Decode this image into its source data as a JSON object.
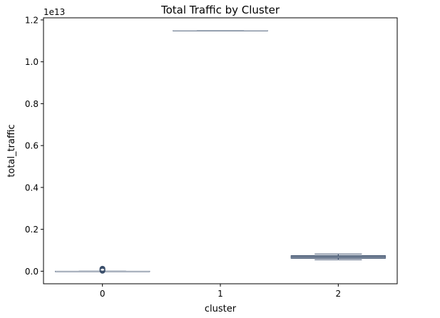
{
  "chart_data": {
    "type": "box",
    "title": "Total Traffic by Cluster",
    "xlabel": "cluster",
    "ylabel": "total_traffic",
    "y_offset_label": "1e13",
    "y_scale": 10000000000000.0,
    "ylim": [
      -0.06,
      1.21
    ],
    "y_ticks": [
      0.0,
      0.2,
      0.4,
      0.6,
      0.8,
      1.0,
      1.2
    ],
    "y_tick_labels": [
      "0.0",
      "0.2",
      "0.4",
      "0.6",
      "0.8",
      "1.0",
      "1.2"
    ],
    "categories": [
      "0",
      "1",
      "2"
    ],
    "box_color": "#3b4f6b",
    "boxes": [
      {
        "category": "0",
        "whisker_low": 0.0,
        "q1": 0.0,
        "median": 0.0,
        "q3": 0.0,
        "whisker_high": 0.0,
        "outliers": [
          0.002,
          0.004,
          0.006,
          0.008,
          0.01,
          0.012
        ]
      },
      {
        "category": "1",
        "whisker_low": 1.149,
        "q1": 1.149,
        "median": 1.149,
        "q3": 1.149,
        "whisker_high": 1.149,
        "outliers": []
      },
      {
        "category": "2",
        "whisker_low": 0.055,
        "q1": 0.062,
        "median": 0.068,
        "q3": 0.074,
        "whisker_high": 0.082,
        "outliers": []
      }
    ],
    "grid": false,
    "legend": "none"
  }
}
